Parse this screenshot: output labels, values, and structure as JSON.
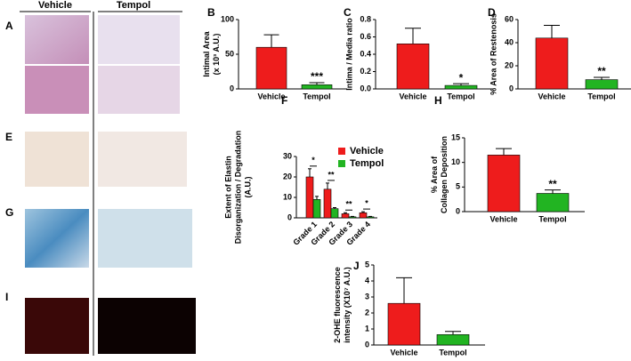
{
  "headers": [
    "Vehicle",
    "Tempol"
  ],
  "panel_letters": [
    "A",
    "E",
    "G",
    "I"
  ],
  "chart_data": [
    {
      "type": "bar",
      "panel": "B",
      "ylabel": [
        "Intimal Area",
        "(x 10³ A.U.)"
      ],
      "categories": [
        "Vehicle",
        "Tempol"
      ],
      "values": [
        60,
        6
      ],
      "errors": [
        18,
        3
      ],
      "colors": [
        "#ee1c1c",
        "#22b422"
      ],
      "ylim": [
        0,
        100
      ],
      "yticks": [
        0,
        50,
        100
      ],
      "annotation": "***"
    },
    {
      "type": "bar",
      "panel": "C",
      "ylabel": [
        "Intima / Media ratio"
      ],
      "categories": [
        "Vehicle",
        "Tempol"
      ],
      "values": [
        0.52,
        0.04
      ],
      "errors": [
        0.18,
        0.02
      ],
      "colors": [
        "#ee1c1c",
        "#22b422"
      ],
      "ylim": [
        0,
        0.8
      ],
      "yticks": [
        {
          "value": 0,
          "label": "0.0"
        },
        0.2,
        0.4,
        0.6,
        0.8
      ],
      "annotation": "*"
    },
    {
      "type": "bar",
      "panel": "D",
      "ylabel": [
        "% Area of Restenosis"
      ],
      "categories": [
        "Vehicle",
        "Tempol"
      ],
      "values": [
        44,
        8
      ],
      "errors": [
        11,
        2
      ],
      "colors": [
        "#ee1c1c",
        "#22b422"
      ],
      "ylim": [
        0,
        60
      ],
      "yticks": [
        0,
        20,
        40,
        60
      ],
      "annotation": "**"
    },
    {
      "type": "grouped_bar",
      "panel": "F",
      "ylabel": [
        "Extent of Elastin",
        "Disorganization / Degradation",
        "(A.U.)"
      ],
      "categories": [
        "Grade 1",
        "Grade 2",
        "Grade 3",
        "Grade 4"
      ],
      "series": [
        {
          "name": "Vehicle",
          "color": "#ee1c1c",
          "values": [
            20,
            14,
            2,
            2.5
          ],
          "errors": [
            4,
            3,
            0.5,
            0.5
          ]
        },
        {
          "name": "Tempol",
          "color": "#22b422",
          "values": [
            9,
            4.5,
            0.5,
            0.5
          ],
          "errors": [
            1.5,
            0.5,
            0.2,
            0.2
          ]
        }
      ],
      "ylim": [
        0,
        30
      ],
      "yticks": [
        0,
        10,
        20,
        30
      ],
      "annotations": [
        "*",
        "**",
        "**",
        "*"
      ]
    },
    {
      "type": "bar",
      "panel": "H",
      "ylabel": [
        "% Area of",
        "Collagen  Deposition"
      ],
      "categories": [
        "Vehicle",
        "Tempol"
      ],
      "values": [
        11.5,
        3.7
      ],
      "errors": [
        1.3,
        0.7
      ],
      "colors": [
        "#ee1c1c",
        "#22b422"
      ],
      "ylim": [
        0,
        15
      ],
      "yticks": [
        0,
        5,
        10,
        15
      ],
      "annotation": "**"
    },
    {
      "type": "bar",
      "panel": "J",
      "ylabel": [
        "2-OHE fluorescence",
        "intensity (X10⁷ A.U.)"
      ],
      "categories": [
        "Vehicle",
        "Tempol"
      ],
      "values": [
        2.6,
        0.65
      ],
      "errors": [
        1.6,
        0.2
      ],
      "colors": [
        "#ee1c1c",
        "#22b422"
      ],
      "ylim": [
        0,
        5
      ],
      "yticks": [
        0,
        1,
        2,
        3,
        4,
        5
      ]
    }
  ]
}
